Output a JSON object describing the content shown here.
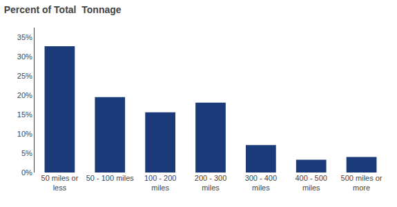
{
  "chart_data": {
    "type": "bar",
    "title": "Percent of Total  Tonnage",
    "categories": [
      "50 miles or\nless",
      "50 - 100 miles",
      "100 - 200\nmiles",
      "200 - 300\nmiles",
      "300 - 400\nmiles",
      "400 - 500\nmiles",
      "500 miles or\nmore"
    ],
    "values": [
      0.327,
      0.195,
      0.156,
      0.181,
      0.071,
      0.033,
      0.04
    ],
    "color": "#1a3a7a",
    "ylim": [
      0,
      0.375
    ],
    "yticks": [
      {
        "value": 0.0,
        "label": "0%"
      },
      {
        "value": 0.05,
        "label": "5%"
      },
      {
        "value": 0.1,
        "label": "10%"
      },
      {
        "value": 0.15,
        "label": "15%"
      },
      {
        "value": 0.2,
        "label": "20%"
      },
      {
        "value": 0.25,
        "label": "25%"
      },
      {
        "value": 0.3,
        "label": "30%"
      },
      {
        "value": 0.35,
        "label": "35%"
      }
    ],
    "grid": false
  }
}
